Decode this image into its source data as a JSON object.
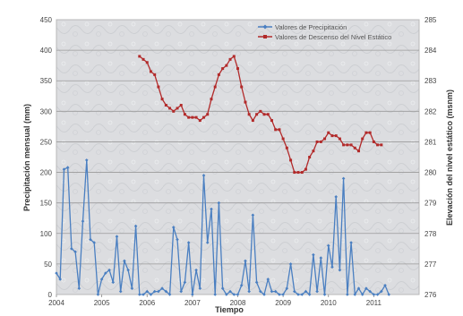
{
  "chart_data": {
    "type": "line",
    "xlabel": "Tiempo",
    "ylabel": "Precipitación mensual (mm)",
    "y2label": "Elevación del nivel estático (msnm)",
    "x_ticks": [
      "2004",
      "2005",
      "2006",
      "2007",
      "2008",
      "2009",
      "2010",
      "2011"
    ],
    "x_range": [
      2004.0,
      2012.0
    ],
    "y_ticks": [
      "0",
      "50",
      "100",
      "150",
      "200",
      "250",
      "300",
      "350",
      "400",
      "450"
    ],
    "ylim": [
      0,
      450
    ],
    "y2_ticks": [
      "276",
      "277",
      "278",
      "279",
      "280",
      "281",
      "282",
      "283",
      "284",
      "285"
    ],
    "y2lim": [
      276,
      285
    ],
    "grid": "horizontal",
    "legend_position": "top-right",
    "colors": {
      "precip": "#4a7fc1",
      "level": "#b22a2a",
      "plot_bg": "#dedfe1",
      "grid": "#9a9a9a"
    },
    "series": [
      {
        "name": "Valores de Precipitación",
        "axis": "left",
        "color": "#4a7fc1",
        "marker": "diamond",
        "x": [
          2004.0,
          2004.083,
          2004.167,
          2004.25,
          2004.333,
          2004.417,
          2004.5,
          2004.583,
          2004.667,
          2004.75,
          2004.833,
          2004.917,
          2005.0,
          2005.083,
          2005.167,
          2005.25,
          2005.333,
          2005.417,
          2005.5,
          2005.583,
          2005.667,
          2005.75,
          2005.833,
          2005.917,
          2006.0,
          2006.083,
          2006.167,
          2006.25,
          2006.333,
          2006.417,
          2006.5,
          2006.583,
          2006.667,
          2006.75,
          2006.833,
          2006.917,
          2007.0,
          2007.083,
          2007.167,
          2007.25,
          2007.333,
          2007.417,
          2007.5,
          2007.583,
          2007.667,
          2007.75,
          2007.833,
          2007.917,
          2008.0,
          2008.083,
          2008.167,
          2008.25,
          2008.333,
          2008.417,
          2008.5,
          2008.583,
          2008.667,
          2008.75,
          2008.833,
          2008.917,
          2009.0,
          2009.083,
          2009.167,
          2009.25,
          2009.333,
          2009.417,
          2009.5,
          2009.583,
          2009.667,
          2009.75,
          2009.833,
          2009.917,
          2010.0,
          2010.083,
          2010.167,
          2010.25,
          2010.333,
          2010.417,
          2010.5,
          2010.583,
          2010.667,
          2010.75,
          2010.833,
          2010.917,
          2011.0,
          2011.083,
          2011.167,
          2011.25,
          2011.333
        ],
        "values": [
          35,
          25,
          205,
          208,
          75,
          70,
          10,
          120,
          220,
          90,
          85,
          0,
          25,
          35,
          40,
          20,
          95,
          5,
          55,
          40,
          10,
          112,
          0,
          0,
          5,
          0,
          5,
          5,
          10,
          5,
          0,
          110,
          90,
          5,
          20,
          85,
          0,
          40,
          10,
          195,
          85,
          140,
          0,
          150,
          10,
          0,
          5,
          0,
          0,
          15,
          55,
          5,
          130,
          20,
          5,
          0,
          25,
          5,
          5,
          0,
          0,
          10,
          50,
          5,
          0,
          0,
          5,
          0,
          65,
          5,
          60,
          0,
          80,
          45,
          160,
          40,
          190,
          0,
          85,
          0,
          10,
          0,
          10,
          5,
          0,
          0,
          5,
          15,
          0
        ]
      },
      {
        "name": "Valores de Descenso del Nivel Estático",
        "axis": "right",
        "color": "#b22a2a",
        "marker": "square",
        "x": [
          2005.833,
          2005.917,
          2006.0,
          2006.083,
          2006.167,
          2006.25,
          2006.333,
          2006.417,
          2006.5,
          2006.583,
          2006.667,
          2006.75,
          2006.833,
          2006.917,
          2007.0,
          2007.083,
          2007.167,
          2007.25,
          2007.333,
          2007.417,
          2007.5,
          2007.583,
          2007.667,
          2007.75,
          2007.833,
          2007.917,
          2008.0,
          2008.083,
          2008.167,
          2008.25,
          2008.333,
          2008.417,
          2008.5,
          2008.583,
          2008.667,
          2008.75,
          2008.833,
          2008.917,
          2009.0,
          2009.083,
          2009.167,
          2009.25,
          2009.333,
          2009.417,
          2009.5,
          2009.583,
          2009.667,
          2009.75,
          2009.833,
          2009.917,
          2010.0,
          2010.083,
          2010.167,
          2010.25,
          2010.333,
          2010.417,
          2010.5,
          2010.583,
          2010.667,
          2010.75,
          2010.833,
          2010.917,
          2011.0,
          2011.083,
          2011.167
        ],
        "values": [
          283.8,
          283.7,
          283.6,
          283.3,
          283.2,
          282.8,
          282.4,
          282.2,
          282.1,
          282.0,
          282.1,
          282.2,
          281.9,
          281.8,
          281.8,
          281.8,
          281.7,
          281.8,
          281.9,
          282.4,
          282.8,
          283.2,
          283.4,
          283.5,
          283.7,
          283.8,
          283.4,
          282.8,
          282.3,
          281.9,
          281.7,
          281.9,
          282.0,
          281.9,
          281.9,
          281.7,
          281.4,
          281.4,
          281.1,
          280.8,
          280.4,
          280.0,
          280.0,
          280.0,
          280.1,
          280.5,
          280.7,
          281.0,
          281.0,
          281.1,
          281.3,
          281.2,
          281.2,
          281.1,
          280.9,
          280.9,
          280.9,
          280.8,
          280.7,
          281.1,
          281.3,
          281.3,
          281.0,
          280.9,
          280.9
        ]
      }
    ]
  }
}
